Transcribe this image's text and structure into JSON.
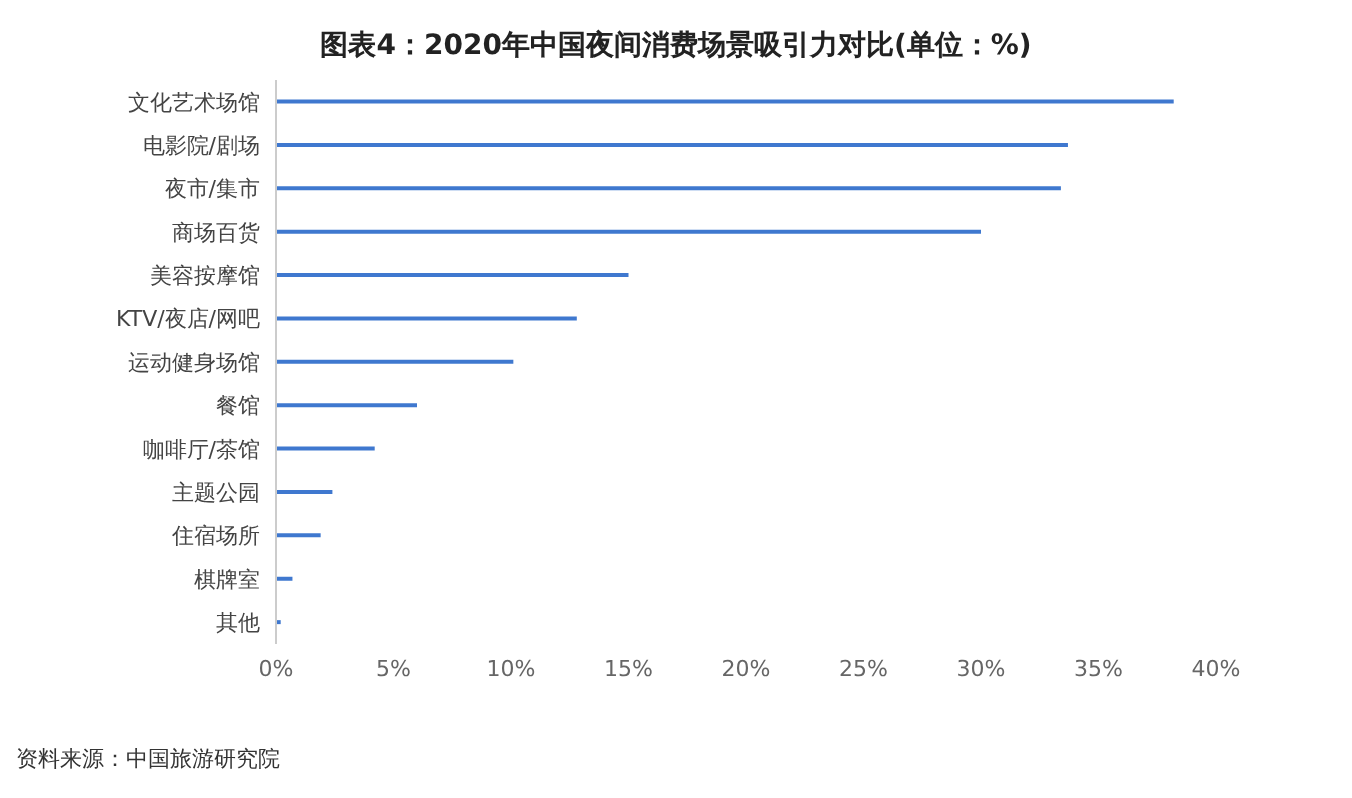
{
  "chart_data": {
    "type": "bar",
    "orientation": "horizontal",
    "title": "图表4：2020年中国夜间消费场景吸引力对比(单位：%)",
    "categories": [
      "文化艺术场馆",
      "电影院/剧场",
      "夜市/集市",
      "商场百货",
      "美容按摩馆",
      "KTV/夜店/网吧",
      "运动健身场馆",
      "餐馆",
      "咖啡厅/茶馆",
      "主题公园",
      "住宿场所",
      "棋牌室",
      "其他"
    ],
    "values": [
      38.2,
      33.7,
      33.4,
      30.0,
      15.0,
      12.8,
      10.1,
      6.0,
      4.2,
      2.4,
      1.9,
      0.7,
      0.2
    ],
    "color": "#3f78cf",
    "xlim": [
      0,
      40
    ],
    "xticks": [
      {
        "value": 0,
        "label": "0%"
      },
      {
        "value": 5,
        "label": "5%"
      },
      {
        "value": 10,
        "label": "10%"
      },
      {
        "value": 15,
        "label": "15%"
      },
      {
        "value": 20,
        "label": "20%"
      },
      {
        "value": 25,
        "label": "25%"
      },
      {
        "value": 30,
        "label": "30%"
      },
      {
        "value": 35,
        "label": "35%"
      },
      {
        "value": 40,
        "label": "40%"
      }
    ],
    "grid": false,
    "annotations": [
      "资料来源：中国旅游研究院"
    ]
  }
}
